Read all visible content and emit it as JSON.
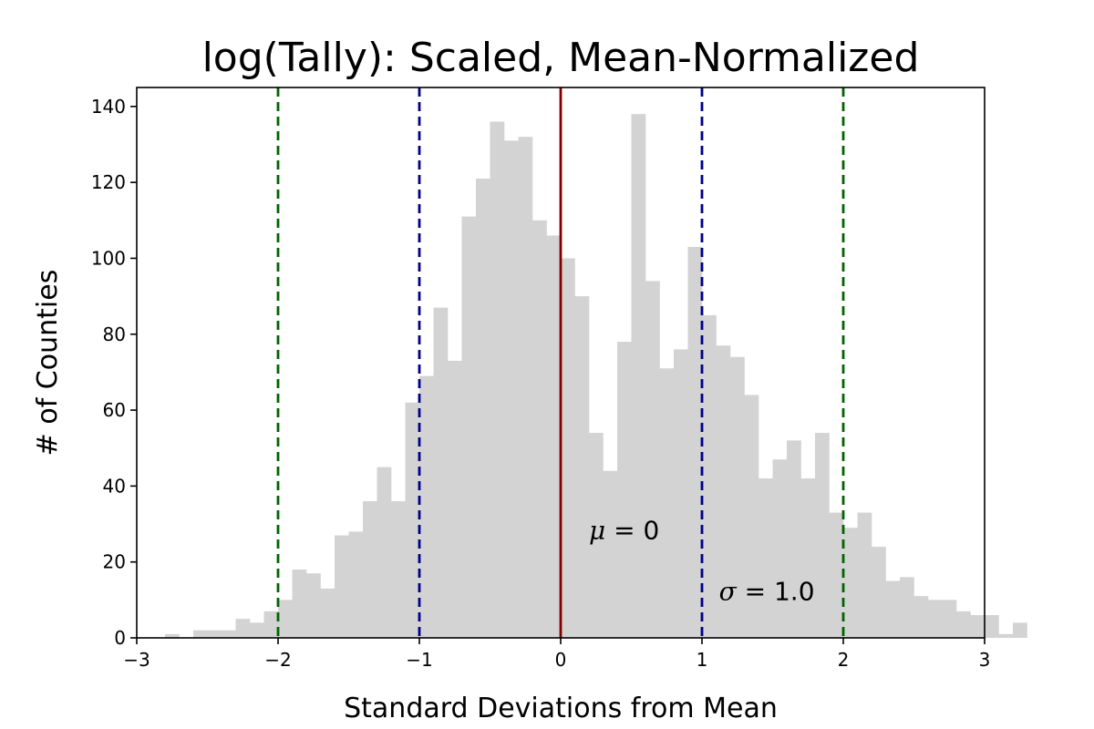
{
  "chart_data": {
    "type": "bar",
    "title": "log(Tally): Scaled, Mean-Normalized",
    "xlabel": "Standard Deviations from Mean",
    "ylabel": "# of Counties",
    "xlim": [
      -3,
      3
    ],
    "ylim": [
      0,
      145
    ],
    "grid": false,
    "xticks": [
      -3,
      -2,
      -1,
      0,
      1,
      2,
      3
    ],
    "xtick_labels": [
      "−3",
      "−2",
      "−1",
      "0",
      "1",
      "2",
      "3"
    ],
    "yticks": [
      0,
      20,
      40,
      60,
      80,
      100,
      120,
      140
    ],
    "ytick_labels": [
      "0",
      "20",
      "40",
      "60",
      "80",
      "100",
      "120",
      "140"
    ],
    "bar_color": "#d3d3d3",
    "histogram": {
      "bin_start": -3.0,
      "bin_width": 0.1,
      "counts": [
        0,
        0,
        1,
        0,
        2,
        2,
        2,
        5,
        4,
        7,
        10,
        18,
        17,
        13,
        27,
        28,
        36,
        45,
        36,
        62,
        69,
        87,
        73,
        111,
        121,
        136,
        131,
        132,
        110,
        106,
        100,
        90,
        54,
        44,
        78,
        138,
        94,
        71,
        76,
        103,
        85,
        77,
        74,
        64,
        42,
        47,
        52,
        42,
        54,
        33,
        29,
        33,
        24,
        15,
        16,
        11,
        10,
        10,
        7,
        6,
        6,
        1,
        4
      ]
    },
    "reference_lines": [
      {
        "x": 0,
        "style": "solid",
        "color": "#800000"
      },
      {
        "x": -1,
        "style": "dashed",
        "color": "#00008b"
      },
      {
        "x": 1,
        "style": "dashed",
        "color": "#00008b"
      },
      {
        "x": -2,
        "style": "dashed",
        "color": "#006400"
      },
      {
        "x": 2,
        "style": "dashed",
        "color": "#006400"
      }
    ],
    "annotations": [
      {
        "symbol": "μ",
        "text": " = 0",
        "x": 0.2,
        "y": 26
      },
      {
        "symbol": "σ",
        "text": " = 1.0",
        "x": 1.12,
        "y": 10
      }
    ]
  }
}
